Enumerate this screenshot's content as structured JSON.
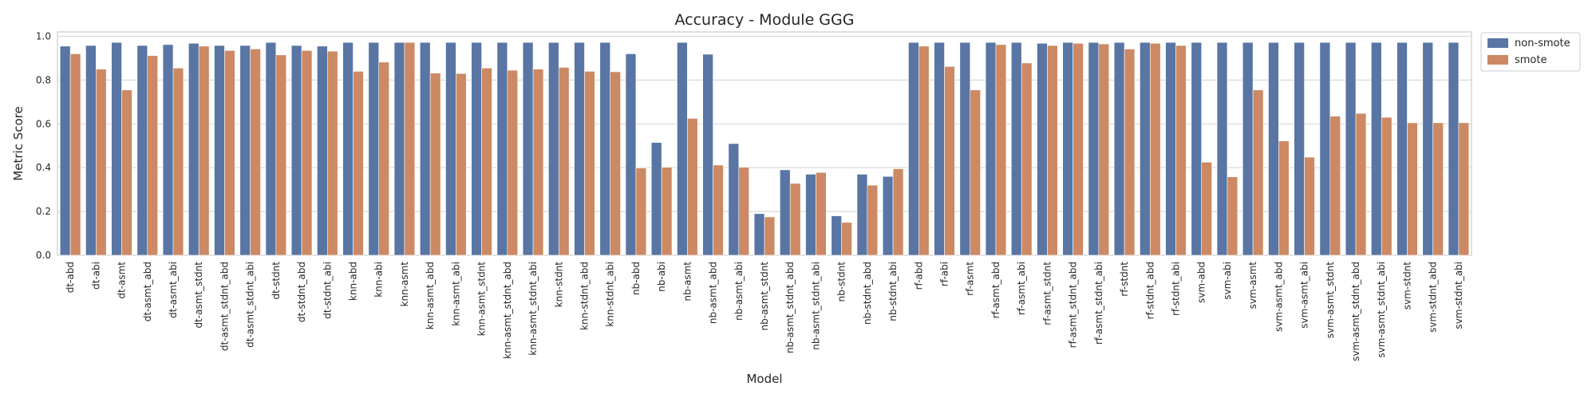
{
  "chart_data": {
    "type": "bar",
    "title": "Accuracy - Module GGG",
    "xlabel": "Model",
    "ylabel": "Metric Score",
    "ylim": [
      0,
      1.02
    ],
    "yticks": [
      "0.0",
      "0.2",
      "0.4",
      "0.6",
      "0.8",
      "1.0"
    ],
    "grid": true,
    "legend_position": "outside-top-right",
    "categories": [
      "dt-abd",
      "dt-abi",
      "dt-asmt",
      "dt-asmt_abd",
      "dt-asmt_abi",
      "dt-asmt_stdnt",
      "dt-asmt_stdnt_abd",
      "dt-asmt_stdnt_abi",
      "dt-stdnt",
      "dt-stdnt_abd",
      "dt-stdnt_abi",
      "knn-abd",
      "knn-abi",
      "knn-asmt",
      "knn-asmt_abd",
      "knn-asmt_abi",
      "knn-asmt_stdnt",
      "knn-asmt_stdnt_abd",
      "knn-asmt_stdnt_abi",
      "knn-stdnt",
      "knn-stdnt_abd",
      "knn-stdnt_abi",
      "nb-abd",
      "nb-abi",
      "nb-asmt",
      "nb-asmt_abd",
      "nb-asmt_abi",
      "nb-asmt_stdnt",
      "nb-asmt_stdnt_abd",
      "nb-asmt_stdnt_abi",
      "nb-stdnt",
      "nb-stdnt_abd",
      "nb-stdnt_abi",
      "rf-abd",
      "rf-abi",
      "rf-asmt",
      "rf-asmt_abd",
      "rf-asmt_abi",
      "rf-asmt_stdnt",
      "rf-asmt_stdnt_abd",
      "rf-asmt_stdnt_abi",
      "rf-stdnt",
      "rf-stdnt_abd",
      "rf-stdnt_abi",
      "svm-abd",
      "svm-abi",
      "svm-asmt",
      "svm-asmt_abd",
      "svm-asmt_abi",
      "svm-asmt_stdnt",
      "svm-asmt_stdnt_abd",
      "svm-asmt_stdnt_abi",
      "svm-stdnt",
      "svm-stdnt_abd",
      "svm-stdnt_abi"
    ],
    "series": [
      {
        "name": "non-smote",
        "color": "#5875a4",
        "values": [
          0.955,
          0.958,
          0.972,
          0.958,
          0.962,
          0.968,
          0.958,
          0.958,
          0.972,
          0.958,
          0.955,
          0.972,
          0.972,
          0.972,
          0.972,
          0.972,
          0.972,
          0.972,
          0.972,
          0.972,
          0.972,
          0.972,
          0.92,
          0.515,
          0.972,
          0.918,
          0.51,
          0.19,
          0.39,
          0.37,
          0.18,
          0.37,
          0.36,
          0.972,
          0.972,
          0.972,
          0.972,
          0.972,
          0.968,
          0.972,
          0.972,
          0.972,
          0.972,
          0.972,
          0.972,
          0.972,
          0.972,
          0.972,
          0.972,
          0.972,
          0.972,
          0.972,
          0.972,
          0.972,
          0.972
        ]
      },
      {
        "name": "smote",
        "color": "#cc8963",
        "values": [
          0.92,
          0.85,
          0.755,
          0.912,
          0.855,
          0.955,
          0.935,
          0.942,
          0.915,
          0.935,
          0.932,
          0.84,
          0.882,
          0.972,
          0.832,
          0.83,
          0.855,
          0.845,
          0.85,
          0.858,
          0.84,
          0.838,
          0.398,
          0.402,
          0.625,
          0.412,
          0.402,
          0.175,
          0.328,
          0.378,
          0.15,
          0.32,
          0.395,
          0.955,
          0.862,
          0.755,
          0.962,
          0.878,
          0.958,
          0.968,
          0.965,
          0.942,
          0.968,
          0.958,
          0.425,
          0.358,
          0.755,
          0.522,
          0.448,
          0.635,
          0.648,
          0.63,
          0.605,
          0.605,
          0.605
        ]
      }
    ]
  }
}
